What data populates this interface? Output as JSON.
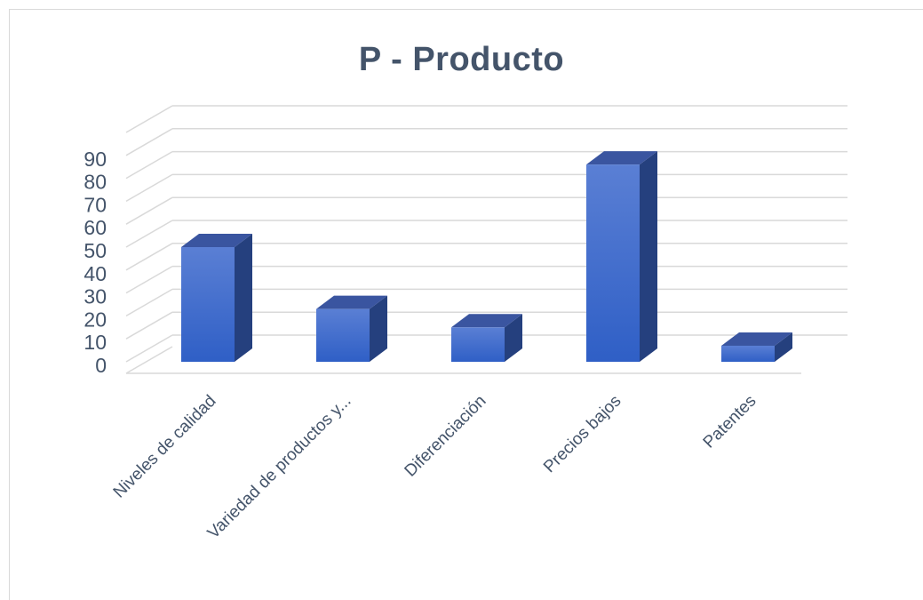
{
  "chart_data": {
    "type": "bar",
    "title": "P - Producto",
    "categories": [
      "Niveles de calidad",
      "Variedad de productos y...",
      "Diferenciación",
      "Precios bajos",
      "Patentes"
    ],
    "values": [
      50,
      23,
      15,
      86,
      7
    ],
    "ylim": [
      0,
      100
    ],
    "yticks": [
      0,
      10,
      20,
      30,
      40,
      50,
      60,
      70,
      80,
      90
    ],
    "xlabel": "",
    "ylabel": "",
    "grid": true,
    "legend": "none",
    "style": "3d-column",
    "colors": {
      "bar_front_top": "#5a7fd4",
      "bar_front_bottom": "#2f5fc6",
      "bar_top": "#3a55a0",
      "bar_side": "#25407e",
      "grid": "#d9d9d9",
      "text": "#44546a"
    }
  }
}
